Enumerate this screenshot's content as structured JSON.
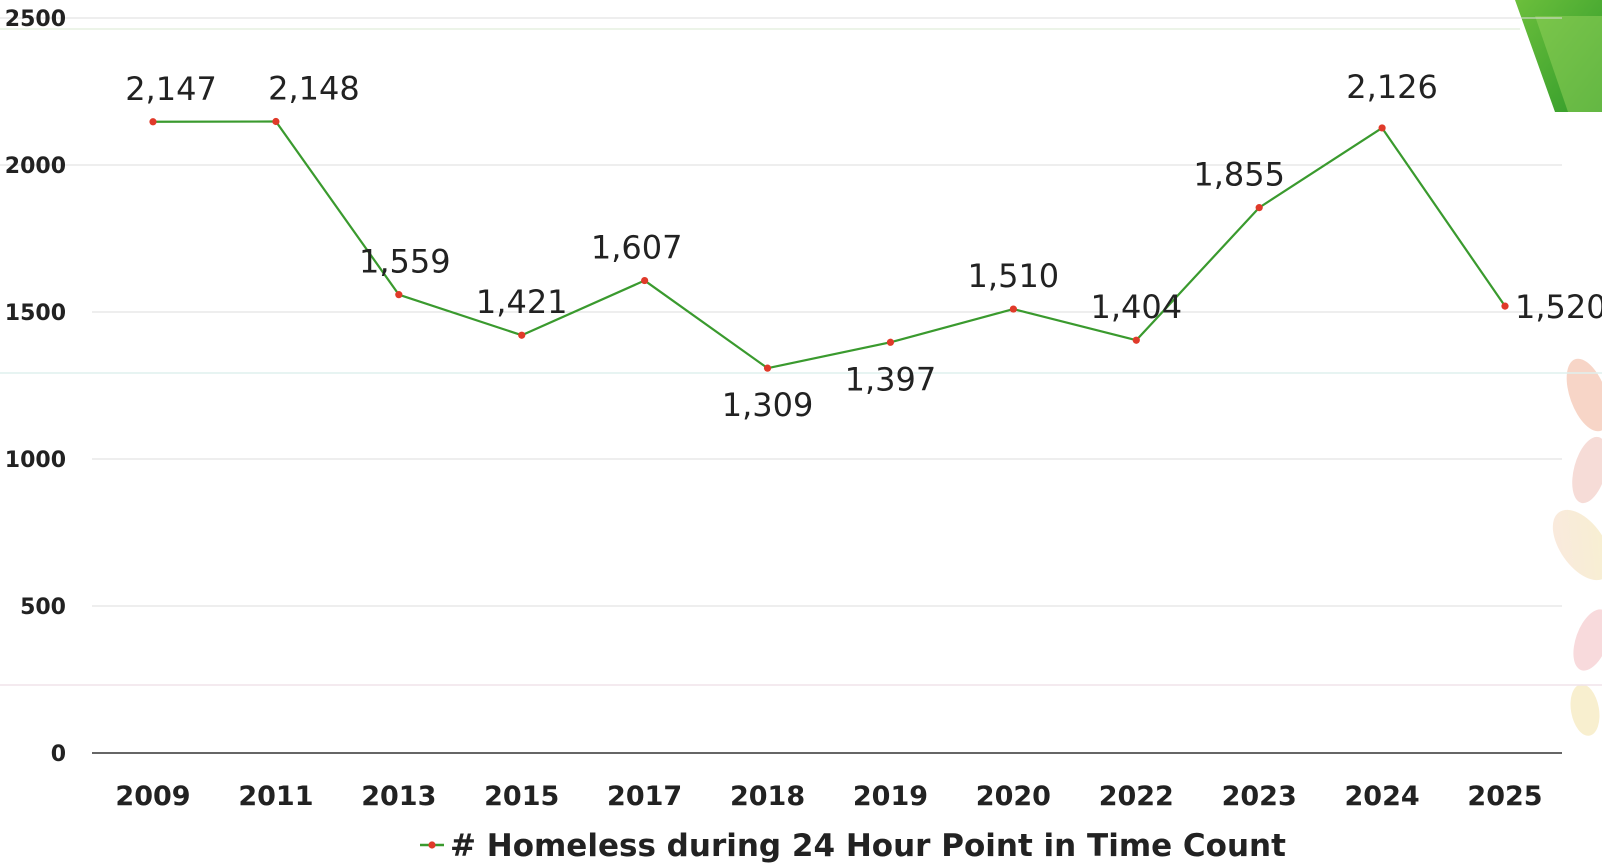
{
  "chart_data": {
    "type": "line",
    "categories": [
      "2009",
      "2011",
      "2013",
      "2015",
      "2017",
      "2018",
      "2019",
      "2020",
      "2022",
      "2023",
      "2024",
      "2025"
    ],
    "series": [
      {
        "name": "# Homeless during 24 Hour Point in Time Count",
        "values": [
          2147,
          2148,
          1559,
          1421,
          1607,
          1309,
          1397,
          1510,
          1404,
          1855,
          2126,
          1520
        ],
        "data_labels": [
          "2,147",
          "2,148",
          "1,559",
          "1,421",
          "1,607",
          "1,309",
          "1,397",
          "1,510",
          "1,404",
          "1,855",
          "2,126",
          "1,520"
        ],
        "line_color": "#3a9a2e",
        "marker_color": "#e03a2a"
      }
    ],
    "y_ticks": [
      "0",
      "500",
      "1000",
      "1500",
      "2000",
      "2500"
    ],
    "ylim": [
      0,
      2500
    ],
    "title": "",
    "xlabel": "",
    "ylabel": "",
    "grid": true,
    "legend_position": "bottom-center"
  }
}
